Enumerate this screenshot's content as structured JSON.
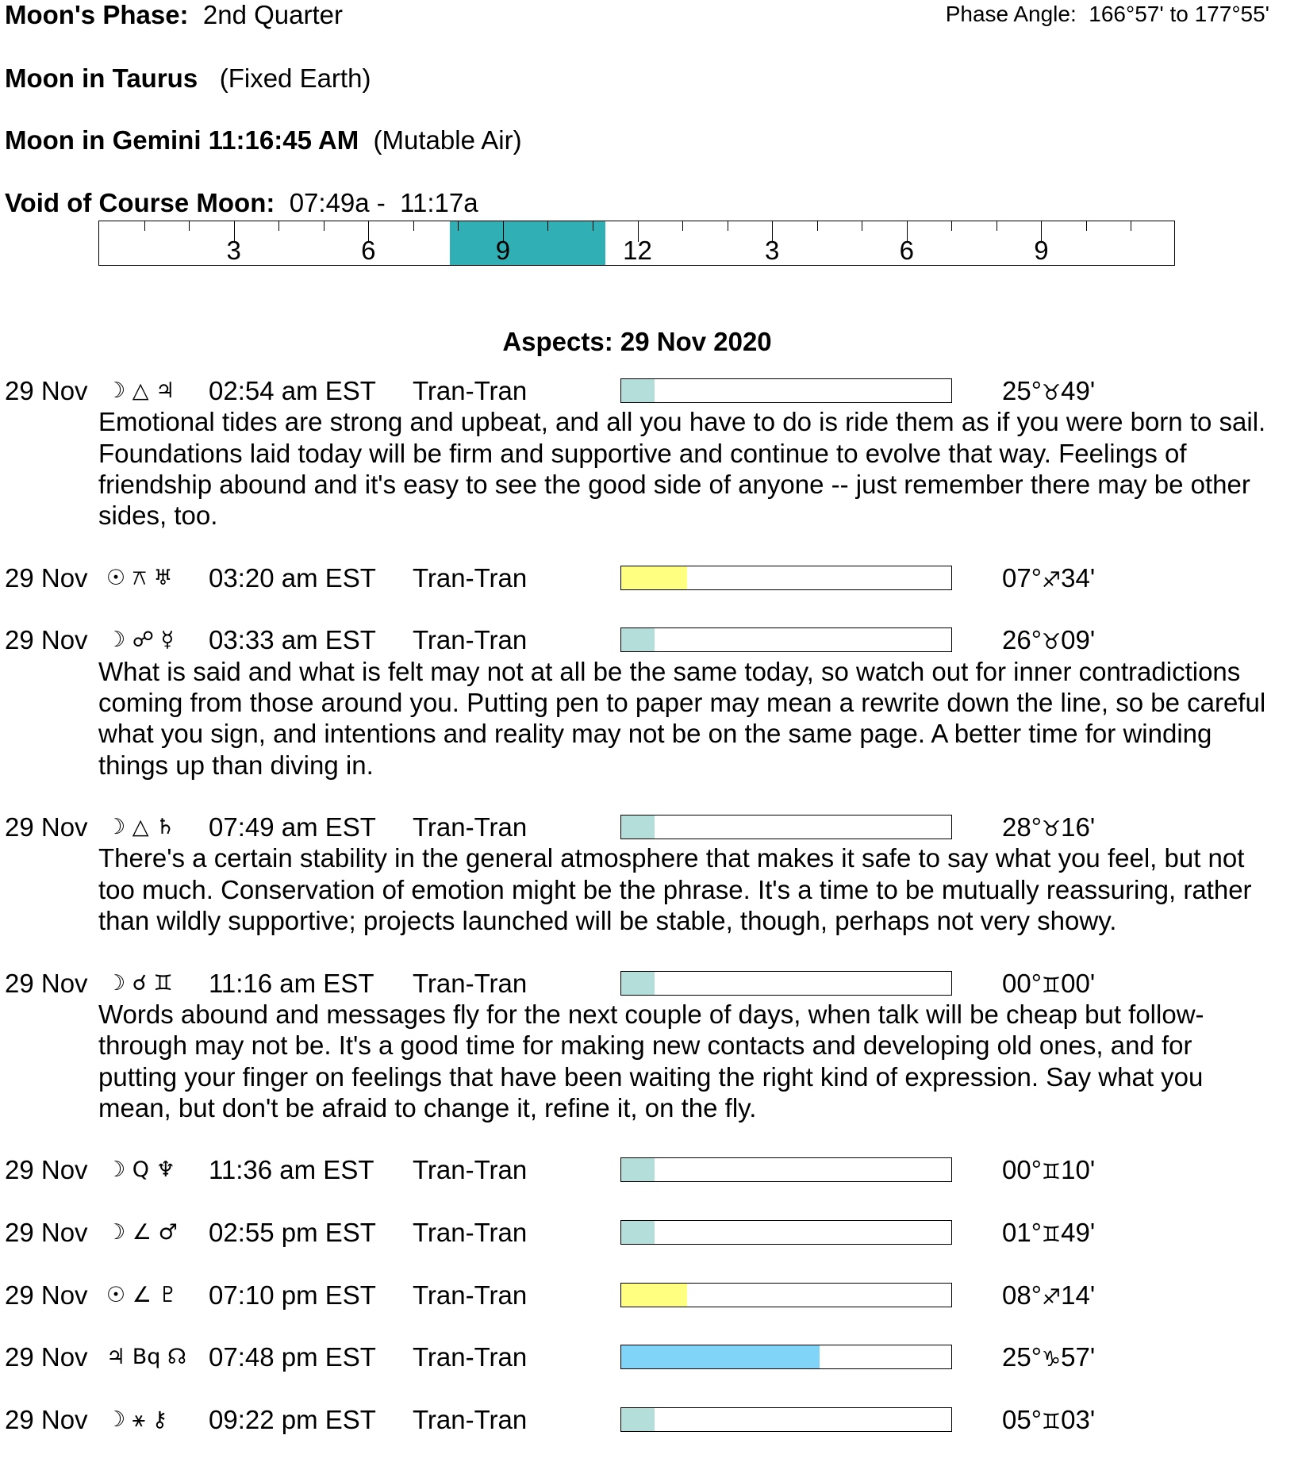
{
  "header": {
    "phase_label": "Moon's Phase:",
    "phase_value": "2nd Quarter",
    "phase_angle": "Phase Angle:  166°57' to 177°55'",
    "moon_sign_label": "Moon in Taurus",
    "moon_sign_note": "(Fixed Earth)",
    "moon_ingress_label": "Moon in Gemini 11:16:45 AM",
    "moon_ingress_note": "(Mutable Air)",
    "voc_label": "Void of Course Moon:",
    "voc_value": "07:49a -  11:17a"
  },
  "timeline": {
    "labels": [
      "3",
      "6",
      "9",
      "12",
      "3",
      "6",
      "9"
    ],
    "voc_start_hour": 7.82,
    "voc_end_hour": 11.28,
    "voc_color": "#30b0b4"
  },
  "aspects_title": "Aspects: 29 Nov 2020",
  "aspects": [
    {
      "date": "29 Nov",
      "symbols": "☽ △ ♃",
      "time": "02:54 am EST",
      "type": "Tran-Tran",
      "strength": 0.1,
      "color": "#b3ded9",
      "deg": "25°",
      "sign": "♉",
      "min": "49'",
      "desc": "Emotional tides are strong and upbeat, and all you have to do is ride them as if you were born to sail. Foundations laid today will be firm and supportive and continue to evolve that way. Feelings of friendship abound and it's easy to see the good side of anyone -- just remember there may be other sides, too."
    },
    {
      "date": "29 Nov",
      "symbols": "☉ ⚻ ♅",
      "time": "03:20 am EST",
      "type": "Tran-Tran",
      "strength": 0.2,
      "color": "#ffff80",
      "deg": "07°",
      "sign": "♐",
      "min": "34'",
      "desc": ""
    },
    {
      "date": "29 Nov",
      "symbols": "☽ ☍ ☿",
      "time": "03:33 am EST",
      "type": "Tran-Tran",
      "strength": 0.1,
      "color": "#b3ded9",
      "deg": "26°",
      "sign": "♉",
      "min": "09'",
      "desc": "What is said and what is felt may not at all be the same today, so watch out for inner contradictions coming from those around you. Putting pen to paper may mean a rewrite down the line, so be careful what you sign, and intentions and reality may not be on the same page. A better time for winding things up than diving in."
    },
    {
      "date": "29 Nov",
      "symbols": "☽ △ ♄",
      "time": "07:49 am EST",
      "type": "Tran-Tran",
      "strength": 0.1,
      "color": "#b3ded9",
      "deg": "28°",
      "sign": "♉",
      "min": "16'",
      "desc": "There's a certain stability in the general atmosphere that makes it safe to say what you feel, but not too much. Conservation of emotion might be the phrase. It's a time to be mutually reassuring, rather than wildly supportive; projects launched will be stable, though, perhaps not very showy."
    },
    {
      "date": "29 Nov",
      "symbols": "☽ ☌ ♊",
      "time": "11:16 am EST",
      "type": "Tran-Tran",
      "strength": 0.1,
      "color": "#b3ded9",
      "deg": "00°",
      "sign": "♊",
      "min": "00'",
      "desc": "Words abound and messages fly for the next couple of days, when talk will be cheap but follow-through may not be. It's a good time for making new contacts and developing old ones, and for putting your finger on feelings that have been waiting the right kind of expression. Say what you mean, but don't be afraid to change it, refine it, on the fly."
    },
    {
      "date": "29 Nov",
      "symbols": "☽ Q ♆",
      "time": "11:36 am EST",
      "type": "Tran-Tran",
      "strength": 0.1,
      "color": "#b3ded9",
      "deg": "00°",
      "sign": "♊",
      "min": "10'",
      "desc": ""
    },
    {
      "date": "29 Nov",
      "symbols": "☽ ∠ ♂",
      "time": "02:55 pm EST",
      "type": "Tran-Tran",
      "strength": 0.1,
      "color": "#b3ded9",
      "deg": "01°",
      "sign": "♊",
      "min": "49'",
      "desc": ""
    },
    {
      "date": "29 Nov",
      "symbols": "☉ ∠ ♇",
      "time": "07:10 pm EST",
      "type": "Tran-Tran",
      "strength": 0.2,
      "color": "#ffff80",
      "deg": "08°",
      "sign": "♐",
      "min": "14'",
      "desc": ""
    },
    {
      "date": "29 Nov",
      "symbols": "♃ Bq ☊",
      "time": "07:48 pm EST",
      "type": "Tran-Tran",
      "strength": 0.6,
      "color": "#80d4f8",
      "deg": "25°",
      "sign": "♑",
      "min": "57'",
      "desc": ""
    },
    {
      "date": "29 Nov",
      "symbols": "☽ ⚹ ⚷",
      "time": "09:22 pm EST",
      "type": "Tran-Tran",
      "strength": 0.1,
      "color": "#b3ded9",
      "deg": "05°",
      "sign": "♊",
      "min": "03'",
      "desc": ""
    }
  ]
}
